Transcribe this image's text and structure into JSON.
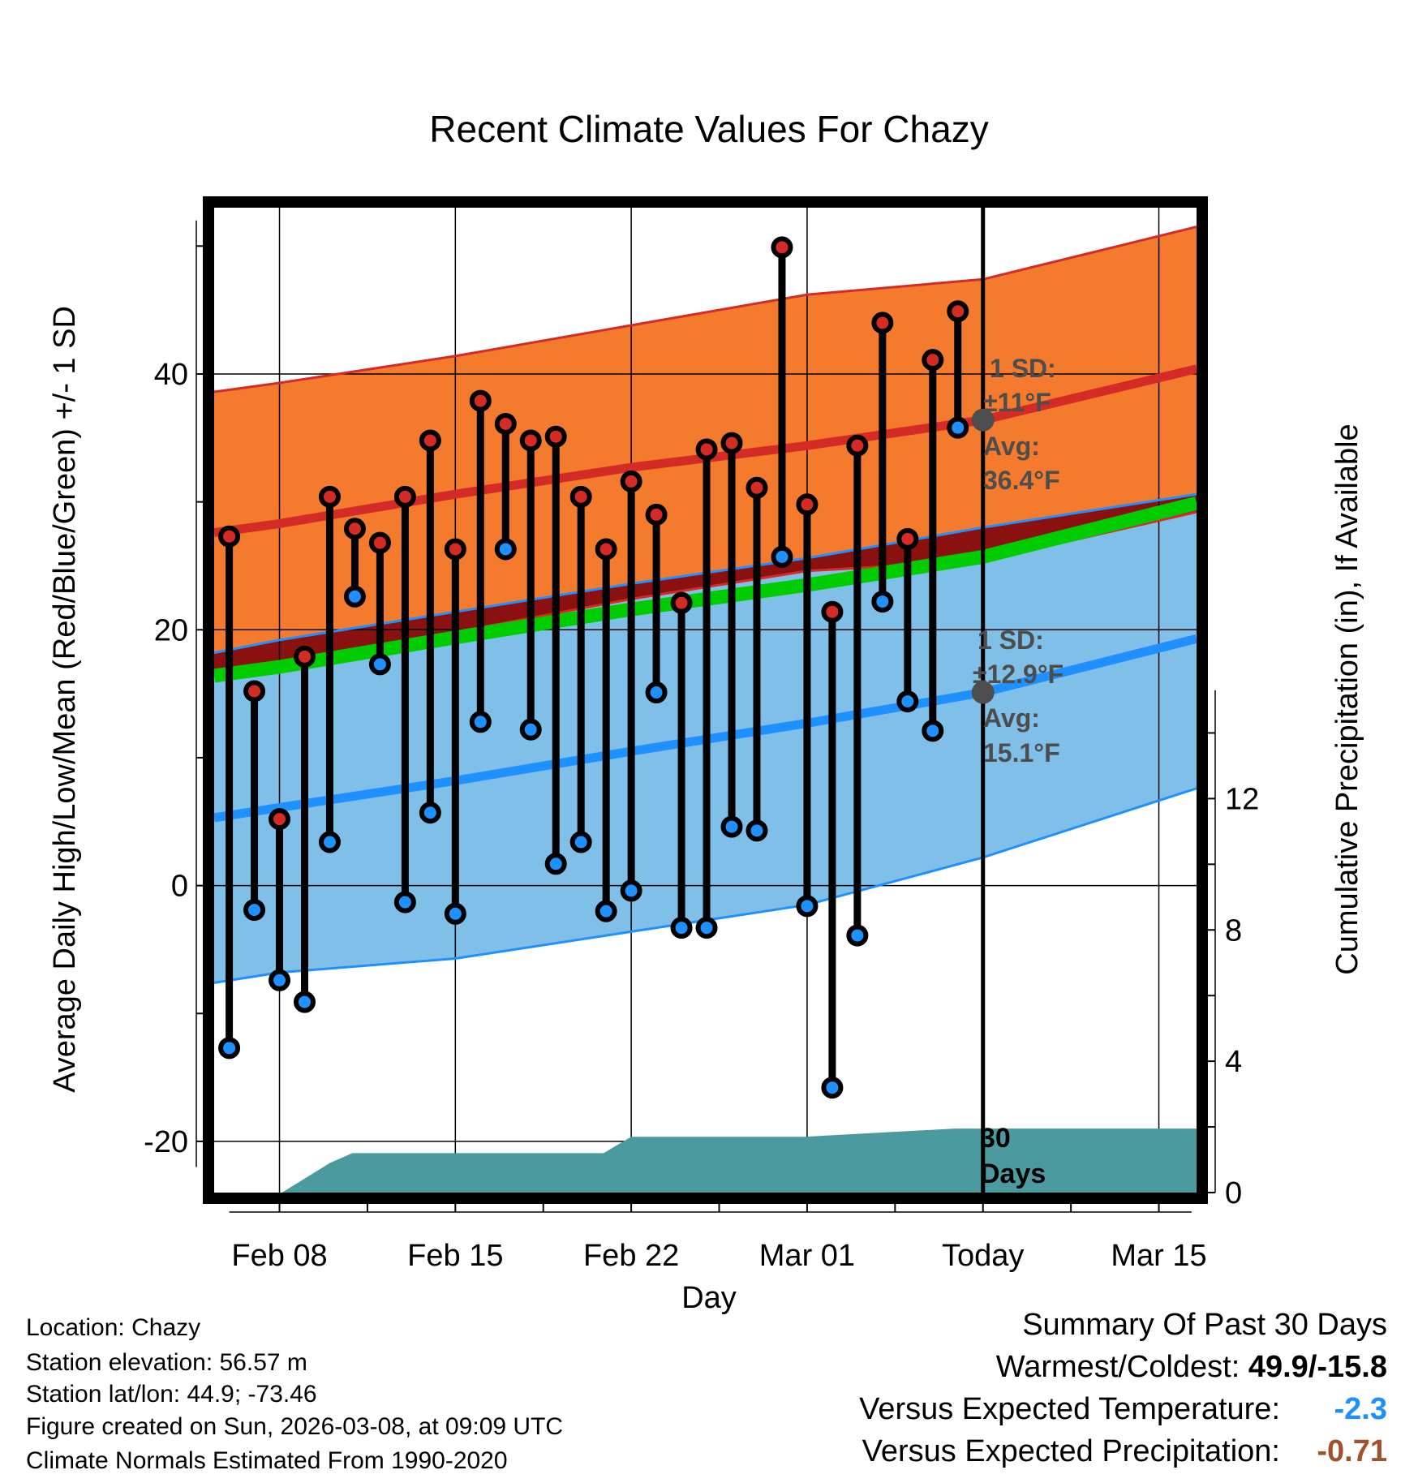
{
  "chart_data": {
    "type": "line",
    "title": "Recent Climate Values For Chazy",
    "xlabel": "Day",
    "ylabel": "Average Daily High/Low/Mean (Red/Blue/Green) +/- 1 SD",
    "y2label": "Cumulative Precipitation (in), If Available",
    "xlim": [
      5.4,
      44.5
    ],
    "ylim": [
      -24,
      53
    ],
    "y2lim": [
      0,
      30
    ],
    "x_ticks": [
      {
        "x": 8,
        "label": "Feb 08"
      },
      {
        "x": 15,
        "label": "Feb 15"
      },
      {
        "x": 22,
        "label": "Feb 22"
      },
      {
        "x": 29,
        "label": "Mar 01"
      },
      {
        "x": 36,
        "label": "Today"
      },
      {
        "x": 43,
        "label": "Mar 15"
      }
    ],
    "y_ticks": [
      -20,
      0,
      20,
      40
    ],
    "y_minor_ticks": [
      -10,
      10,
      30,
      50
    ],
    "y2_ticks": [
      0,
      4,
      8,
      12
    ],
    "today_x": 36,
    "normals": {
      "x": [
        5.4,
        8,
        15,
        22,
        29,
        36,
        44.5
      ],
      "high_avg": [
        27.6,
        28.3,
        30.6,
        32.7,
        34.4,
        36.4,
        40.4
      ],
      "high_upper": [
        38.6,
        39.3,
        41.4,
        43.8,
        46.2,
        47.4,
        51.5
      ],
      "high_lower": [
        16.6,
        17.3,
        19.8,
        22.4,
        24.6,
        25.4,
        29.2
      ],
      "low_avg": [
        5.3,
        6.1,
        8.2,
        10.5,
        12.7,
        15.1,
        19.3
      ],
      "low_upper": [
        18.2,
        19.2,
        21.4,
        23.6,
        25.6,
        28.0,
        30.6
      ],
      "low_lower": [
        -7.6,
        -6.8,
        -5.7,
        -3.6,
        -1.5,
        2.2,
        7.6
      ],
      "mean_avg": [
        16.4,
        17.1,
        19.4,
        21.6,
        23.5,
        25.7,
        29.9
      ]
    },
    "daily": {
      "x": [
        6,
        7,
        8,
        9,
        10,
        11,
        12,
        13,
        14,
        15,
        16,
        17,
        18,
        19,
        20,
        21,
        22,
        23,
        24,
        25,
        26,
        27,
        28,
        29,
        30,
        31,
        32,
        33,
        34,
        35
      ],
      "high": [
        27.3,
        15.2,
        5.2,
        17.9,
        30.4,
        27.9,
        26.8,
        30.4,
        34.8,
        26.3,
        37.9,
        36.1,
        34.8,
        35.1,
        30.4,
        26.3,
        31.6,
        29.0,
        22.1,
        34.1,
        34.6,
        31.1,
        49.9,
        29.8,
        21.4,
        34.4,
        44.0,
        27.1,
        41.1,
        44.9
      ],
      "low": [
        -12.7,
        -1.9,
        -7.4,
        -9.1,
        3.4,
        22.6,
        17.3,
        -1.3,
        5.7,
        -2.2,
        12.8,
        26.3,
        12.2,
        1.7,
        3.4,
        -2.0,
        -0.4,
        15.1,
        -3.3,
        -3.3,
        4.6,
        4.3,
        25.7,
        -1.6,
        -15.8,
        -3.9,
        22.2,
        14.4,
        12.1,
        35.8
      ]
    },
    "precip": {
      "x": [
        6,
        7.3,
        8.1,
        10,
        10.9,
        16.5,
        20.9,
        22,
        28.9,
        34.9,
        44.5
      ],
      "cumulative": [
        0,
        0,
        0,
        0.9,
        1.2,
        1.2,
        1.2,
        1.7,
        1.7,
        1.95,
        1.95
      ]
    },
    "annotations": {
      "high_sd": "1 SD:",
      "high_sd_value": "±11°F",
      "high_avg_label": "Avg:",
      "high_avg_value": "36.4°F",
      "low_sd": "1 SD:",
      "low_sd_value": "±12.9°F",
      "low_avg_label": "Avg:",
      "low_avg_value": "15.1°F",
      "days_number": "30",
      "days_word": "Days"
    },
    "colors": {
      "high_band": "#f47b2e",
      "high_line": "#d52b27",
      "low_band": "#80c0e8",
      "low_line": "#1e90ff",
      "mean_line": "#00cc00",
      "overlap": "#8b1010",
      "precip": "#4a9aa0",
      "annot": "#4d4d4d"
    }
  },
  "footer": {
    "location": "Location: Chazy",
    "elevation": "Station elevation: 56.57 m",
    "latlon": "Station lat/lon: 44.9; -73.46",
    "created": "Figure created on Sun, 2026-03-08, at 09:09 UTC",
    "normals": "Climate Normals Estimated From 1990-2020"
  },
  "summary": {
    "title": "Summary Of Past 30 Days",
    "warm_cold_label": "Warmest/Coldest: ",
    "warm_cold_value": "49.9/-15.8",
    "temp_label": "Versus Expected Temperature:",
    "temp_value": "-2.3",
    "temp_color": "#1e90ff",
    "precip_label": "Versus Expected Precipitation:",
    "precip_value": "-0.71",
    "precip_color": "#a0522d"
  }
}
